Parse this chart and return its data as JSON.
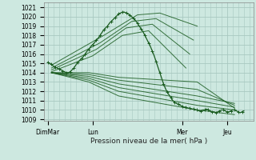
{
  "bg_color": "#cde8e0",
  "grid_color": "#a8c8c0",
  "line_color": "#1a5c20",
  "xlabel": "Pression niveau de la mer( hPa )",
  "yticks": [
    1009,
    1010,
    1011,
    1012,
    1013,
    1014,
    1015,
    1016,
    1017,
    1018,
    1019,
    1020,
    1021
  ],
  "ylim": [
    1008.8,
    1021.5
  ],
  "xtick_labels": [
    "DimMar",
    "Lun",
    "Mer",
    "Jeu"
  ],
  "xtick_positions": [
    0,
    24,
    72,
    96
  ],
  "xlim": [
    -2,
    110
  ],
  "minor_x_interval": 3,
  "fan_lines": [
    {
      "x": [
        2,
        30,
        48,
        60,
        80
      ],
      "y": [
        1014.8,
        1018.0,
        1020.2,
        1020.4,
        1019.0
      ]
    },
    {
      "x": [
        2,
        28,
        45,
        58,
        78
      ],
      "y": [
        1014.5,
        1017.2,
        1019.5,
        1019.8,
        1017.5
      ]
    },
    {
      "x": [
        2,
        26,
        42,
        56,
        76
      ],
      "y": [
        1014.3,
        1016.5,
        1018.8,
        1019.2,
        1016.0
      ]
    },
    {
      "x": [
        2,
        24,
        40,
        54,
        74
      ],
      "y": [
        1014.1,
        1015.8,
        1018.0,
        1018.5,
        1014.5
      ]
    },
    {
      "x": [
        2,
        22,
        38,
        80,
        100
      ],
      "y": [
        1014.0,
        1014.0,
        1013.5,
        1013.0,
        1010.2
      ]
    },
    {
      "x": [
        2,
        22,
        38,
        80,
        100
      ],
      "y": [
        1014.0,
        1013.8,
        1013.2,
        1012.2,
        1010.5
      ]
    },
    {
      "x": [
        2,
        22,
        38,
        80,
        100
      ],
      "y": [
        1014.0,
        1013.6,
        1012.8,
        1011.5,
        1010.7
      ]
    },
    {
      "x": [
        2,
        22,
        38,
        80,
        100
      ],
      "y": [
        1014.0,
        1013.4,
        1012.4,
        1011.0,
        1010.3
      ]
    },
    {
      "x": [
        2,
        22,
        38,
        80,
        100
      ],
      "y": [
        1014.0,
        1013.2,
        1012.0,
        1010.5,
        1010.0
      ]
    },
    {
      "x": [
        2,
        22,
        38,
        80,
        100
      ],
      "y": [
        1014.0,
        1013.0,
        1011.5,
        1010.0,
        1009.5
      ]
    }
  ],
  "main_line_x": [
    0,
    1,
    2,
    3,
    4,
    5,
    6,
    7,
    8,
    9,
    10,
    11,
    12,
    13,
    14,
    15,
    16,
    17,
    18,
    19,
    20,
    21,
    22,
    23,
    24,
    25,
    26,
    27,
    28,
    29,
    30,
    31,
    32,
    33,
    34,
    35,
    36,
    37,
    38,
    39,
    40,
    41,
    42,
    43,
    44,
    45,
    46,
    47,
    48,
    49,
    50,
    51,
    52,
    53,
    54,
    55,
    56,
    57,
    58,
    59,
    60,
    61,
    62,
    63,
    64,
    65,
    66,
    67,
    68,
    69,
    70,
    71,
    72,
    73,
    74,
    75,
    76,
    77,
    78,
    79,
    80,
    81,
    82,
    83,
    84,
    85,
    86,
    87,
    88,
    89,
    90,
    91,
    92,
    93,
    94,
    95,
    96,
    97,
    98,
    99,
    100,
    101,
    102,
    103,
    104,
    105
  ],
  "main_line_y": [
    1015.1,
    1015.0,
    1014.9,
    1014.7,
    1014.6,
    1014.5,
    1014.4,
    1014.3,
    1014.2,
    1014.1,
    1014.0,
    1014.0,
    1014.1,
    1014.3,
    1014.5,
    1014.8,
    1015.1,
    1015.3,
    1015.5,
    1015.7,
    1016.0,
    1016.3,
    1016.5,
    1016.8,
    1017.0,
    1017.2,
    1017.5,
    1017.7,
    1018.0,
    1018.3,
    1018.6,
    1018.8,
    1019.0,
    1019.3,
    1019.5,
    1019.7,
    1019.9,
    1020.1,
    1020.3,
    1020.4,
    1020.5,
    1020.5,
    1020.4,
    1020.3,
    1020.2,
    1020.0,
    1019.8,
    1019.6,
    1019.3,
    1019.0,
    1018.7,
    1018.4,
    1018.0,
    1017.6,
    1017.2,
    1016.8,
    1016.3,
    1015.8,
    1015.2,
    1014.6,
    1014.0,
    1013.4,
    1012.8,
    1012.3,
    1011.9,
    1011.6,
    1011.3,
    1011.0,
    1010.8,
    1010.7,
    1010.6,
    1010.5,
    1010.4,
    1010.3,
    1010.3,
    1010.2,
    1010.2,
    1010.1,
    1010.1,
    1010.0,
    1010.0,
    1009.9,
    1009.9,
    1010.0,
    1010.0,
    1010.1,
    1010.0,
    1009.9,
    1009.8,
    1009.8,
    1009.7,
    1009.8,
    1009.9,
    1010.0,
    1010.0,
    1009.9,
    1009.8,
    1009.8,
    1009.9,
    1010.0,
    1010.0,
    1009.9,
    1009.8,
    1009.7,
    1009.8,
    1009.9
  ]
}
